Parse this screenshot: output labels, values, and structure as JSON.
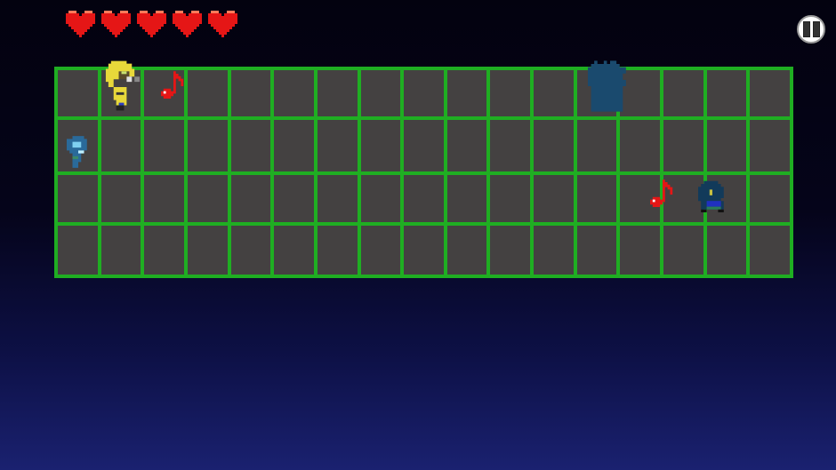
{
  "hud": {
    "hearts": 5,
    "heart_color": "#e51616",
    "pause_icon": "pause-icon"
  },
  "board": {
    "columns": 17,
    "rows": 4,
    "line_color": "#1fae22",
    "cell_color": "#444141"
  },
  "entities": [
    {
      "type": "player-hero",
      "col": 2,
      "row": 1
    },
    {
      "type": "music-note",
      "col": 3,
      "row": 1,
      "color": "#e51616"
    },
    {
      "type": "shadow-tower",
      "col": 13,
      "row": 1
    },
    {
      "type": "ghost-ally",
      "col": 1,
      "row": 2
    },
    {
      "type": "music-note",
      "col": 14,
      "row": 3,
      "color": "#e51616"
    },
    {
      "type": "dark-enemy",
      "col": 16,
      "row": 3
    }
  ]
}
